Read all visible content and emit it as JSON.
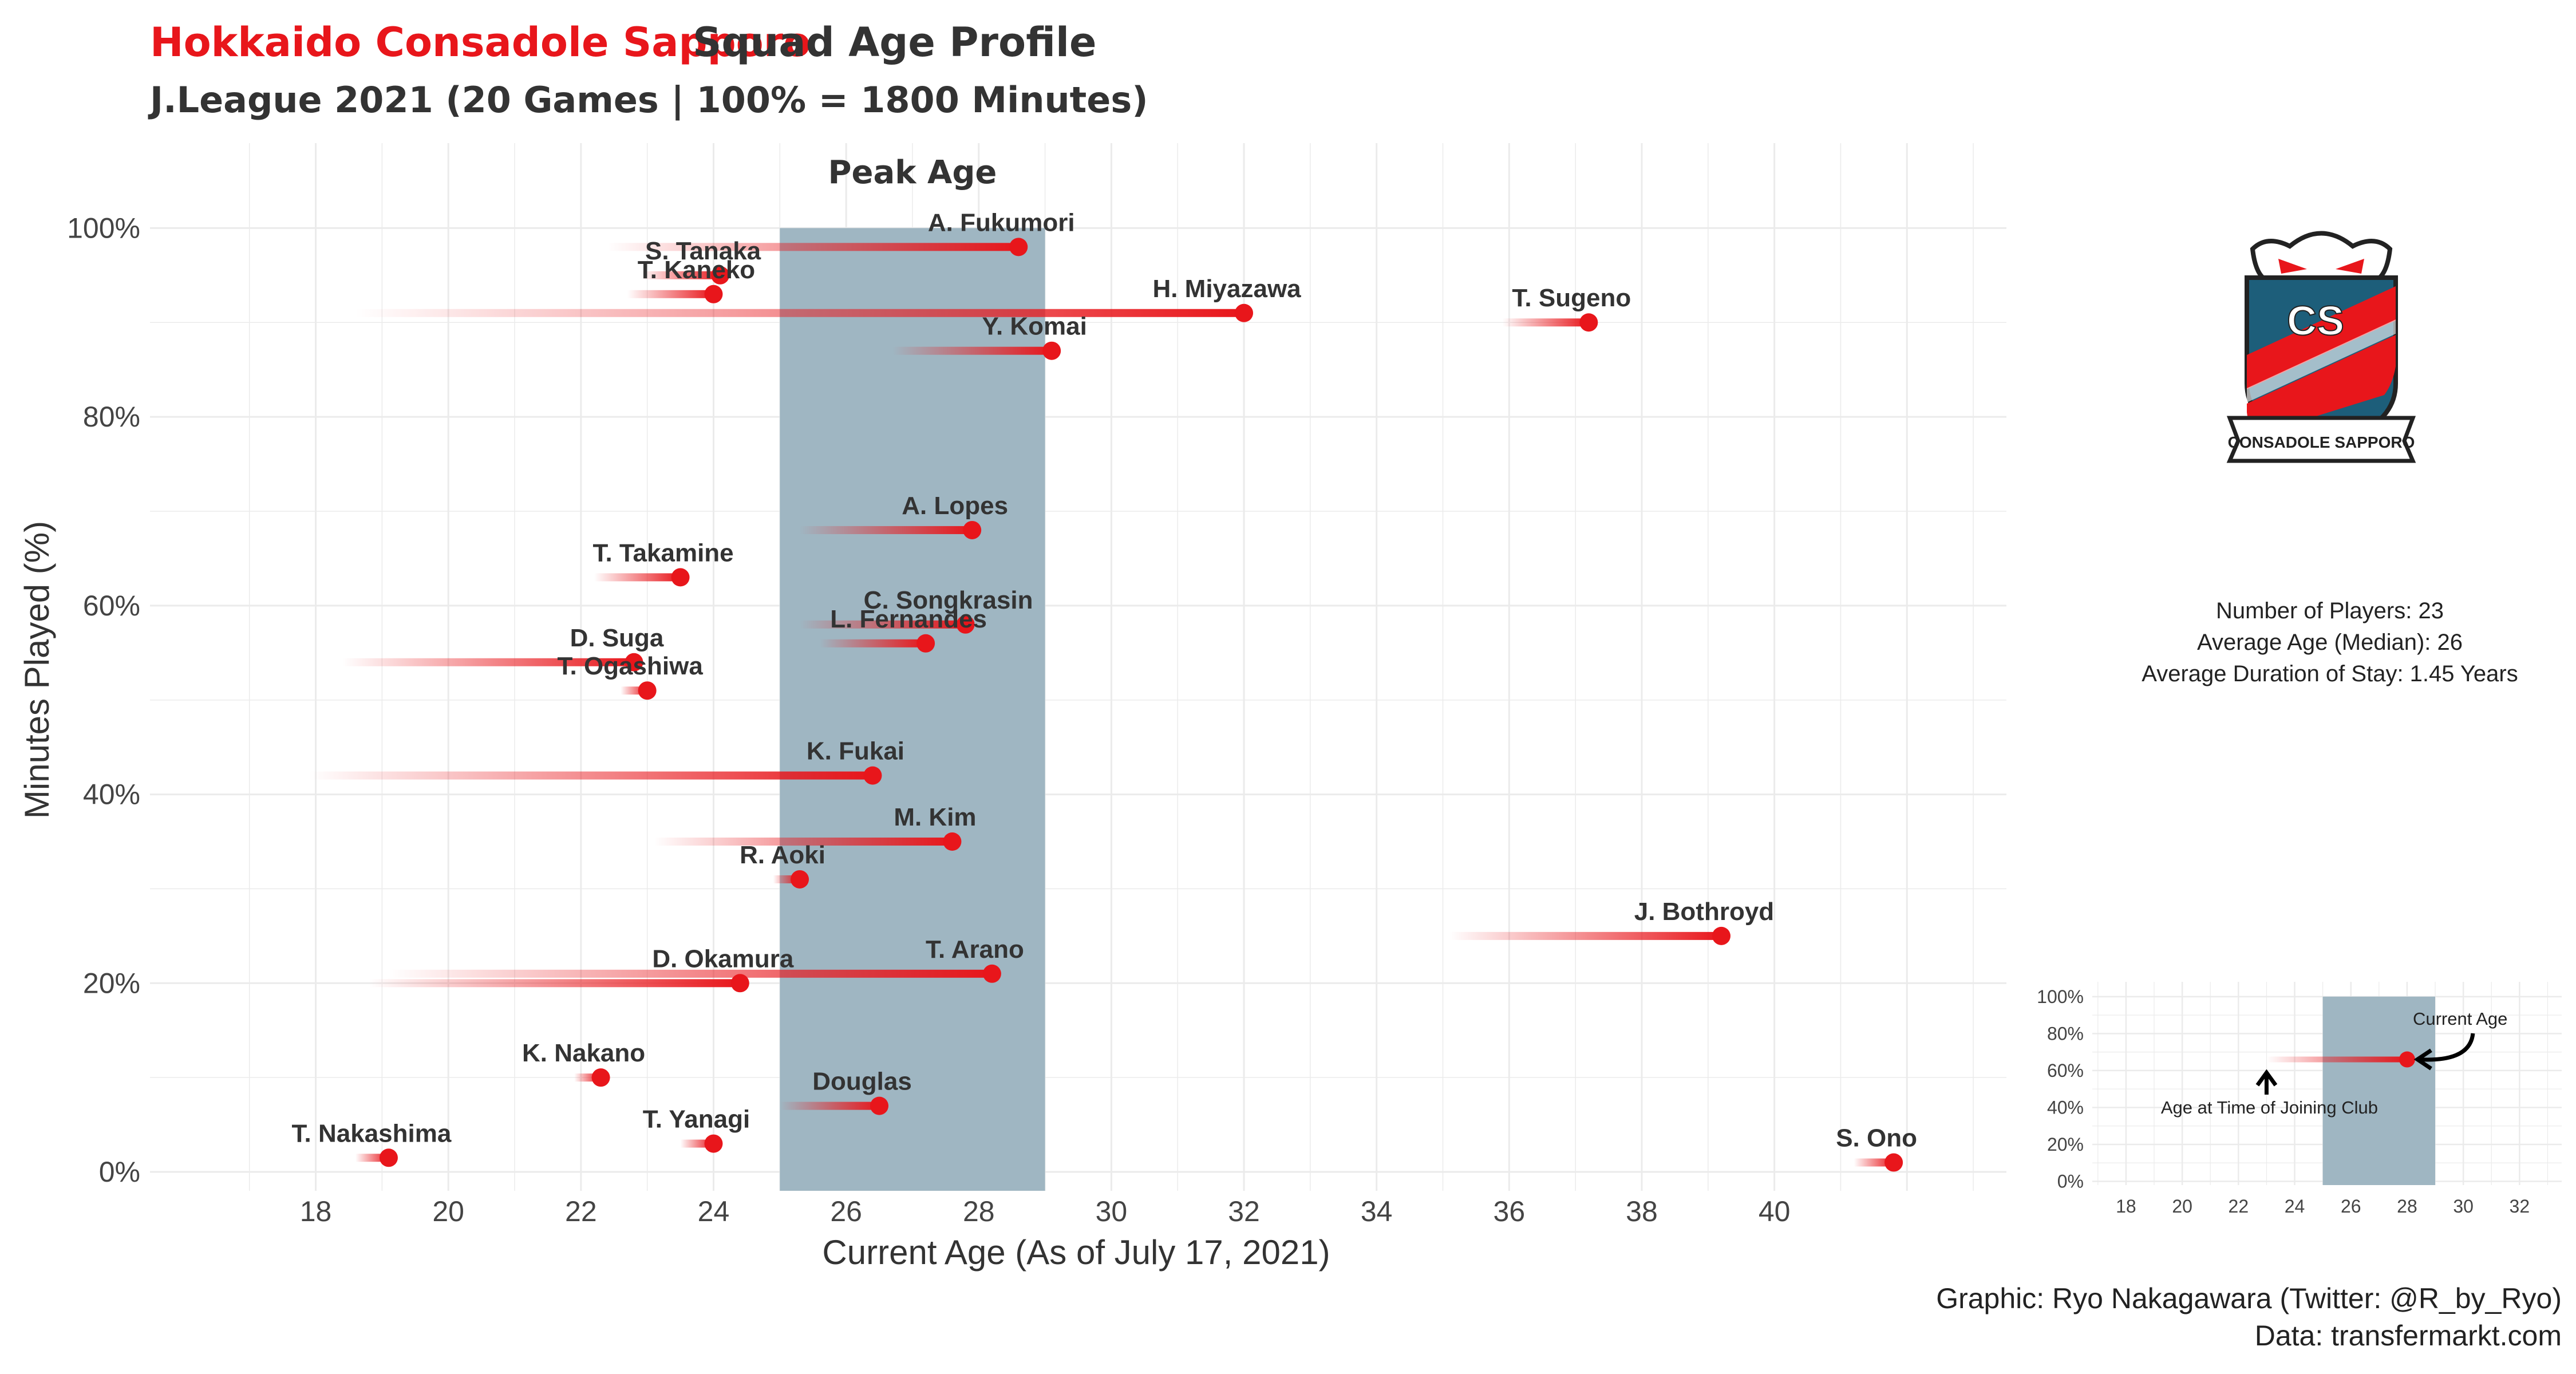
{
  "title": {
    "team": "Hokkaido Consadole Sapporo",
    "rest": "Squad Age Profile",
    "subtitle": "J.League 2021 (20 Games | 100% = 1800 Minutes)"
  },
  "colors": {
    "accent": "#e8161b",
    "peak_band": "#9fb6c2",
    "grid": "#ebebeb",
    "text": "#333333"
  },
  "info": {
    "players": "Number of Players: 23",
    "age": "Average Age (Median): 26",
    "stay": "Average Duration of Stay: 1.45 Years"
  },
  "caption": {
    "credit": "Graphic: Ryo Nakagawara (Twitter: @R_by_Ryo)",
    "source": "Data: transfermarkt.com"
  },
  "logo": {
    "icon": "consadole-sapporo-crest-icon",
    "initials": "CS",
    "name": "CONSADOLE SAPPORO"
  },
  "chart_data": [
    {
      "type": "scatter",
      "xlabel": "Current Age (As of July 17, 2021)",
      "ylabel": "Minutes Played (%)",
      "xlim": [
        15.5,
        43.5
      ],
      "ylim": [
        -2,
        109
      ],
      "x_ticks": [
        18,
        20,
        22,
        24,
        26,
        28,
        30,
        32,
        34,
        36,
        38,
        40
      ],
      "y_ticks": [
        0,
        20,
        40,
        60,
        80,
        100
      ],
      "y_tick_labels": [
        "0%",
        "20%",
        "40%",
        "60%",
        "80%",
        "100%"
      ],
      "grid": true,
      "peak_age": {
        "label": "Peak Age",
        "from": 25,
        "to": 29
      },
      "players": [
        {
          "name": "A. Fukumori",
          "age": 28.6,
          "joined": 22.4,
          "minutes": 98
        },
        {
          "name": "S. Tanaka",
          "age": 24.1,
          "joined": 22.9,
          "minutes": 95
        },
        {
          "name": "T. Kaneko",
          "age": 24.0,
          "joined": 22.7,
          "minutes": 93
        },
        {
          "name": "H. Miyazawa",
          "age": 32.0,
          "joined": 18.6,
          "minutes": 91
        },
        {
          "name": "T. Sugeno",
          "age": 37.2,
          "joined": 35.9,
          "minutes": 90
        },
        {
          "name": "Y. Komai",
          "age": 29.1,
          "joined": 26.7,
          "minutes": 87
        },
        {
          "name": "A. Lopes",
          "age": 27.9,
          "joined": 25.3,
          "minutes": 68
        },
        {
          "name": "T. Takamine",
          "age": 23.5,
          "joined": 22.2,
          "minutes": 63
        },
        {
          "name": "C. Songkrasin",
          "age": 27.8,
          "joined": 25.3,
          "minutes": 58
        },
        {
          "name": "L. Fernandes",
          "age": 27.2,
          "joined": 25.6,
          "minutes": 56
        },
        {
          "name": "D. Suga",
          "age": 22.8,
          "joined": 18.4,
          "minutes": 54
        },
        {
          "name": "T. Ogashiwa",
          "age": 23.0,
          "joined": 22.6,
          "minutes": 51
        },
        {
          "name": "K. Fukai",
          "age": 26.4,
          "joined": 17.9,
          "minutes": 42
        },
        {
          "name": "M. Kim",
          "age": 27.6,
          "joined": 23.1,
          "minutes": 35
        },
        {
          "name": "R. Aoki",
          "age": 25.3,
          "joined": 24.9,
          "minutes": 31
        },
        {
          "name": "J. Bothroyd",
          "age": 39.2,
          "joined": 35.1,
          "minutes": 25
        },
        {
          "name": "T. Arano",
          "age": 28.2,
          "joined": 19.1,
          "minutes": 21
        },
        {
          "name": "D. Okamura",
          "age": 24.4,
          "joined": 18.8,
          "minutes": 20
        },
        {
          "name": "K. Nakano",
          "age": 22.3,
          "joined": 21.9,
          "minutes": 10
        },
        {
          "name": "Douglas",
          "age": 26.5,
          "joined": 25.0,
          "minutes": 7
        },
        {
          "name": "T. Yanagi",
          "age": 24.0,
          "joined": 23.5,
          "minutes": 3
        },
        {
          "name": "T. Nakashima",
          "age": 19.1,
          "joined": 18.6,
          "minutes": 1.5
        },
        {
          "name": "S. Ono",
          "age": 41.8,
          "joined": 41.2,
          "minutes": 1
        }
      ]
    },
    {
      "type": "scatter",
      "xlabel": "",
      "ylabel": "",
      "xlim": [
        16.8,
        33.5
      ],
      "ylim": [
        -2,
        108
      ],
      "x_ticks": [
        18,
        20,
        22,
        24,
        26,
        28,
        30,
        32
      ],
      "y_ticks": [
        0,
        20,
        40,
        60,
        80,
        100
      ],
      "y_tick_labels": [
        "0%",
        "20%",
        "40%",
        "60%",
        "80%",
        "100%"
      ],
      "grid": true,
      "peak_age": {
        "from": 25,
        "to": 29
      },
      "example": {
        "age": 28,
        "joined": 23,
        "minutes": 66
      },
      "annotations": {
        "current": "Current Age",
        "joined": "Age at Time of Joining Club"
      }
    }
  ]
}
